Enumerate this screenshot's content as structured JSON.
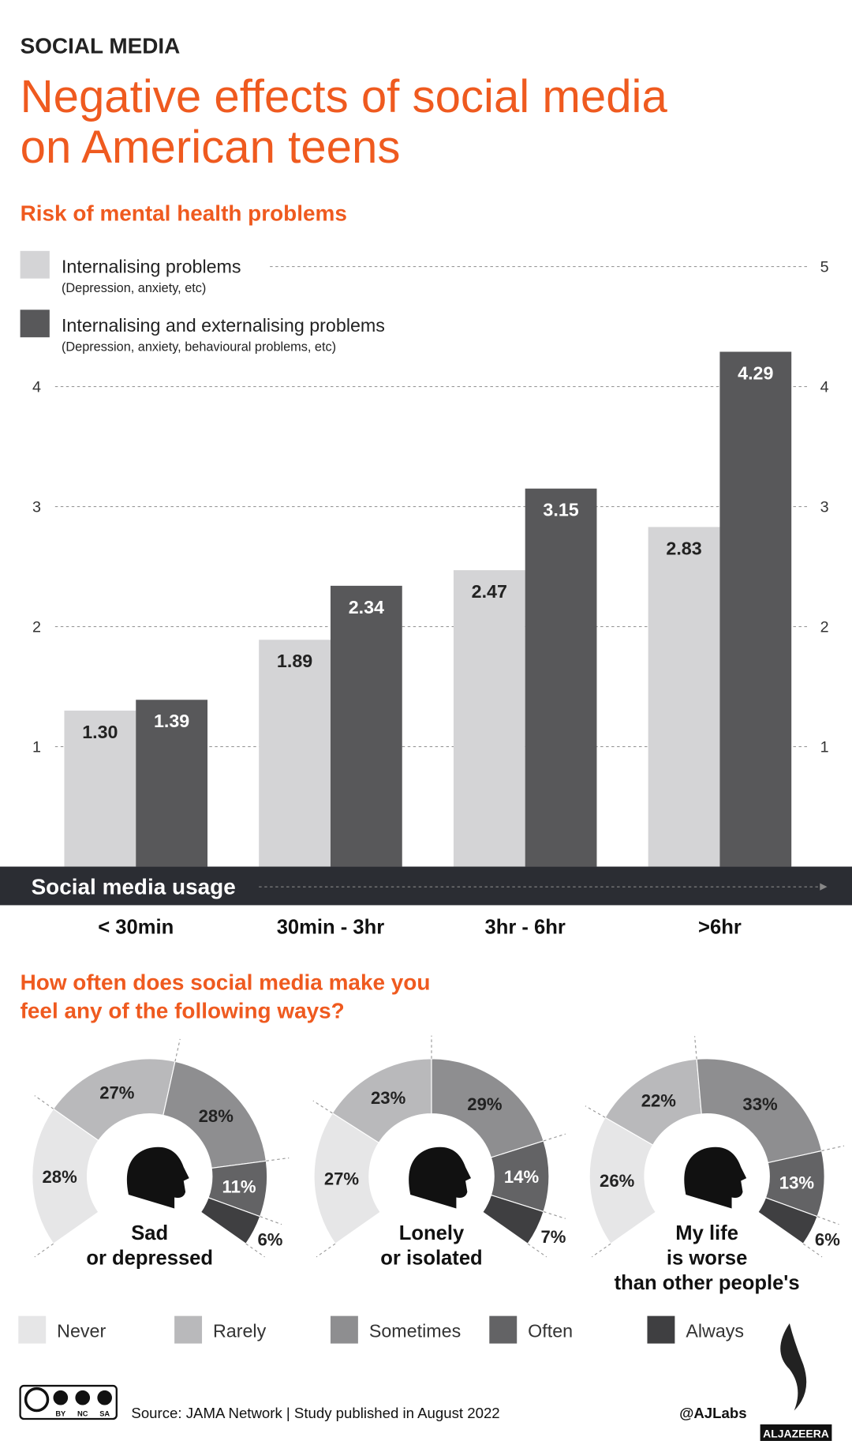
{
  "header": {
    "kicker": "SOCIAL MEDIA",
    "title": "Negative effects of social media\non American teens"
  },
  "chart_data": [
    {
      "type": "bar",
      "title": "Risk of mental health problems",
      "x_label": "Social media usage",
      "categories": [
        "< 30min",
        "30min - 3hr",
        "3hr - 6hr",
        ">6hr"
      ],
      "series": [
        {
          "name": "Internalising problems",
          "note": "(Depression, anxiety, etc)",
          "color": "#d4d4d6",
          "label_color": "#222222",
          "values": [
            1.3,
            1.89,
            2.47,
            2.83
          ],
          "value_labels": [
            "1.30",
            "1.89",
            "2.47",
            "2.83"
          ]
        },
        {
          "name": "Internalising and externalising problems",
          "note": "(Depression, anxiety,  behavioural problems, etc)",
          "color": "#58585a",
          "label_color": "#ffffff",
          "values": [
            1.39,
            2.34,
            3.15,
            4.29
          ],
          "value_labels": [
            "1.39",
            "2.34",
            "3.15",
            "4.29"
          ]
        }
      ],
      "ylim": [
        0,
        5
      ],
      "yticks": [
        1,
        2,
        3,
        4,
        5
      ],
      "grid": true
    },
    {
      "type": "donut",
      "title": "How often does social media make you\nfeel any of the following ways?",
      "categories": [
        "Never",
        "Rarely",
        "Sometimes",
        "Often",
        "Always"
      ],
      "colors": [
        "#e6e6e7",
        "#b9b9bb",
        "#8e8e90",
        "#636365",
        "#3f3f41"
      ],
      "series": [
        {
          "name": "Sad\nor depressed",
          "values": [
            28,
            27,
            28,
            11,
            6
          ],
          "value_labels": [
            "28%",
            "27%",
            "28%",
            "11%",
            "6%"
          ]
        },
        {
          "name": "Lonely\nor isolated",
          "values": [
            27,
            23,
            29,
            14,
            7
          ],
          "value_labels": [
            "27%",
            "23%",
            "29%",
            "14%",
            "7%"
          ]
        },
        {
          "name": "My life\nis worse\nthan other people's",
          "values": [
            26,
            22,
            33,
            13,
            6
          ],
          "value_labels": [
            "26%",
            "22%",
            "33%",
            "13%",
            "6%"
          ]
        }
      ]
    }
  ],
  "footer": {
    "source": "Source: JAMA Network | Study published in August 2022",
    "handle": "@AJLabs",
    "brand": "ALJAZEERA",
    "license": [
      "BY",
      "NC",
      "SA"
    ]
  }
}
